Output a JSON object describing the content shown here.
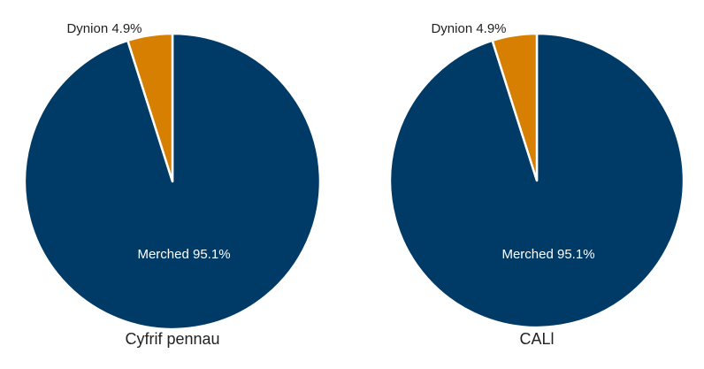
{
  "chart_data": [
    {
      "type": "pie",
      "title": "Cyfrif pennau",
      "slices": [
        {
          "label": "Merched 95.1%",
          "name": "Merched",
          "value": 95.1,
          "color": "#003a66",
          "label_color": "#ffffff"
        },
        {
          "label": "Dynion 4.9%",
          "name": "Dynion",
          "value": 4.9,
          "color": "#d67f00",
          "label_color": "#222222"
        }
      ]
    },
    {
      "type": "pie",
      "title": "CALl",
      "slices": [
        {
          "label": "Merched 95.1%",
          "name": "Merched",
          "value": 95.1,
          "color": "#003a66",
          "label_color": "#ffffff"
        },
        {
          "label": "Dynion 4.9%",
          "name": "Dynion",
          "value": 4.9,
          "color": "#d67f00",
          "label_color": "#222222"
        }
      ]
    }
  ]
}
